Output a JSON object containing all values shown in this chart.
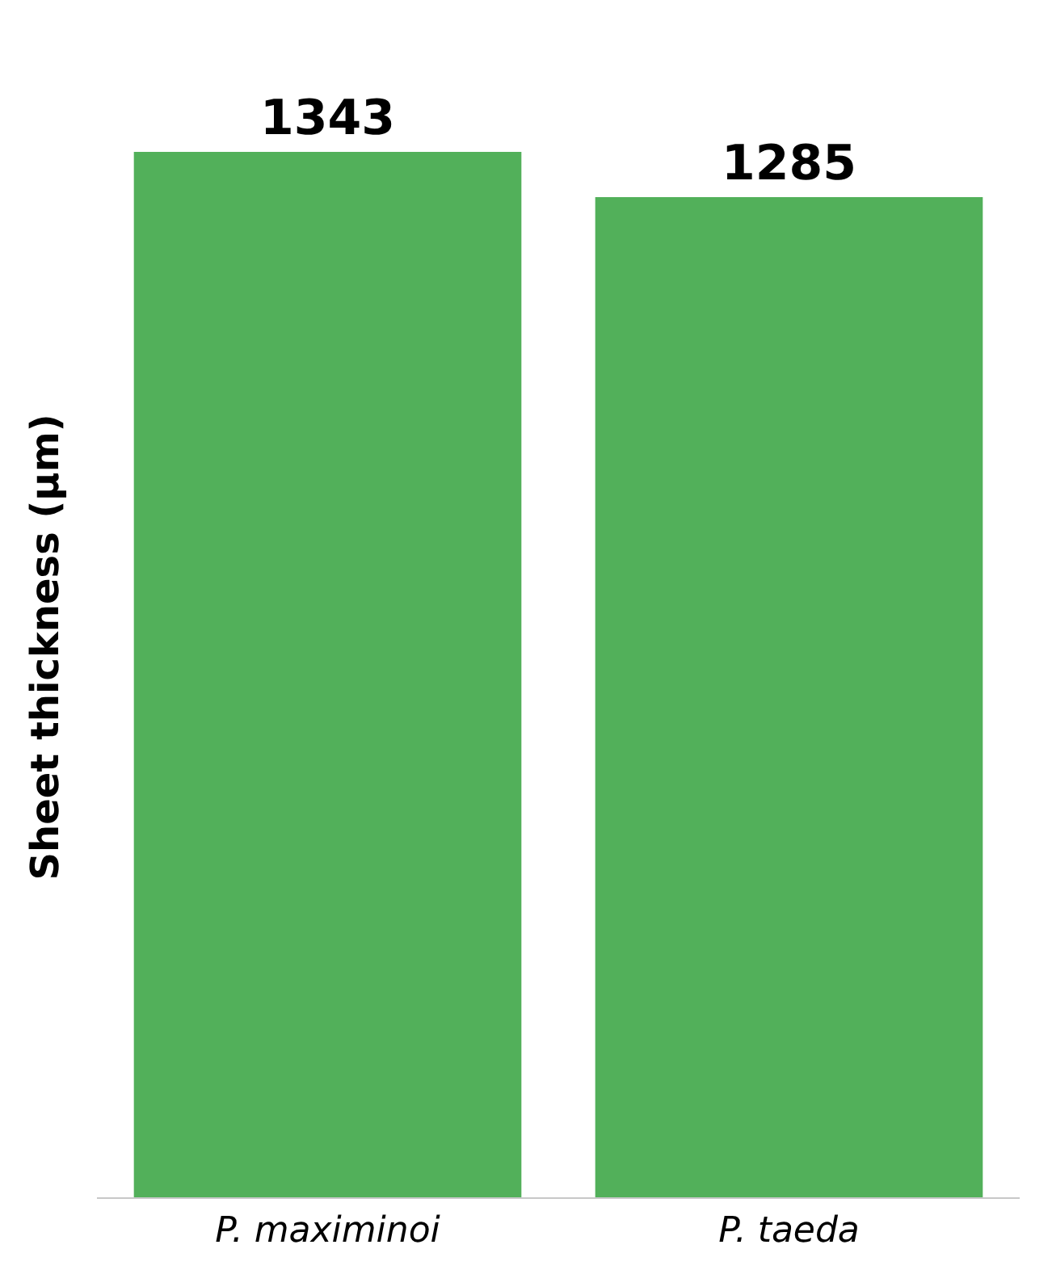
{
  "chart_data": {
    "type": "bar",
    "ylabel": "Sheet thickness (µm)",
    "categories": [
      "P. maximinoi",
      "P. taeda"
    ],
    "values": [
      1343,
      1285
    ],
    "colors": [
      "#52b05a",
      "#52b05a"
    ],
    "data_labels": true
  }
}
